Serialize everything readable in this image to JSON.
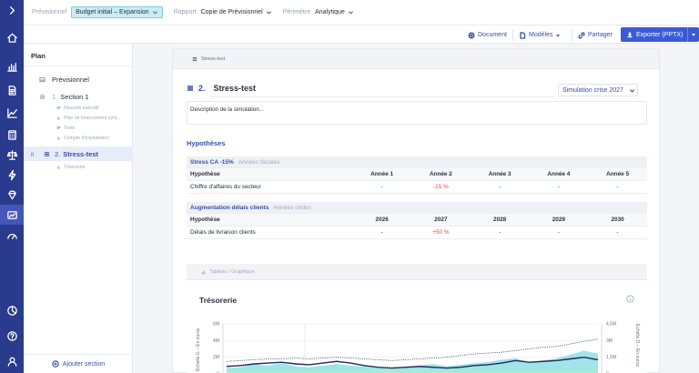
{
  "topbar": {
    "provisionnel_label": "Prévisionnel",
    "provisionnel_value": "Budget initial – Expansion",
    "rapport_label": "Rapport",
    "rapport_value": "Copie de Prévisionnel",
    "perimetre_label": "Périmètre",
    "perimetre_value": "Analytique"
  },
  "actions": {
    "document": "Document",
    "modeles": "Modèles",
    "partager": "Partager",
    "exporter": "Exporter (PPTX)"
  },
  "plan": {
    "title": "Plan",
    "provisionnel": "Prévisionnel",
    "section1_num": "1.",
    "section1_label": "Section 1",
    "section1_items": [
      "Résumé exécutif",
      "Plan de financement synt...",
      "Texte",
      "Compte d'exploitation"
    ],
    "section2_num": "2.",
    "section2_label": "Stress-test",
    "section2_items": [
      "Trésorerie"
    ],
    "add_section": "Ajouter section"
  },
  "content": {
    "crumb": "Stress-test",
    "section_number": "2.",
    "section_title": "Stress-test",
    "scenario": "Simulation crise 2027",
    "description": "Description de la simulation...",
    "hypotheses_title": "Hypothèses",
    "table1": {
      "group_name": "Stress CA -15%",
      "group_sub": "Années fiscales",
      "headers": [
        "Hypothèse",
        "Année 1",
        "Année 2",
        "Année 3",
        "Année 4",
        "Année 5"
      ],
      "row": [
        "Chiffre d'affaires du secteur",
        "-",
        "-15 %",
        "-",
        "-",
        "-"
      ]
    },
    "table2": {
      "group_name": "Augmentation délais clients",
      "group_sub": "Années civiles",
      "headers": [
        "Hypothèse",
        "2026",
        "2027",
        "2028",
        "2029",
        "2030"
      ],
      "row": [
        "Délais de livraison clients",
        "-",
        "+50 %",
        "-",
        "-",
        "-"
      ]
    },
    "chart_strip": "Tableau / Graphique",
    "chart_title": "Trésorerie"
  },
  "chart_data": {
    "type": "line",
    "title": "Trésorerie",
    "left_axis_label": "Échelle G – En euros",
    "right_axis_label": "Échelle D – En euros",
    "left_ticks": [
      "6M",
      "4M",
      "2M",
      "0"
    ],
    "right_ticks": [
      "4,5M",
      "3M",
      "1,5M",
      "0"
    ],
    "ylim_left": [
      0,
      6000000
    ],
    "ylim_right": [
      0,
      4500000
    ],
    "series": [
      {
        "role": "main-line",
        "values": [
          0.9,
          1.0,
          1.2,
          1.3,
          1.4,
          1.2,
          1.1,
          1.3,
          1.5,
          1.3,
          1.0,
          0.8,
          0.7,
          0.8,
          0.9,
          0.8,
          0.7,
          0.8,
          1.0,
          1.1,
          1.3,
          1.6,
          1.4,
          1.5,
          1.6,
          1.8,
          2.0,
          1.7
        ]
      },
      {
        "role": "dotted-line",
        "values": [
          1.5,
          1.6,
          1.7,
          1.8,
          1.8,
          1.9,
          1.8,
          1.9,
          2.0,
          1.9,
          1.8,
          1.7,
          1.6,
          1.7,
          1.8,
          1.9,
          2.0,
          2.2,
          2.4,
          2.5,
          2.6,
          2.8,
          3.0,
          3.2,
          3.3,
          3.6,
          3.9,
          4.2
        ]
      },
      {
        "role": "area",
        "values": [
          0.7,
          0.8,
          1.2,
          1.0,
          1.3,
          0.9,
          0.8,
          1.0,
          1.2,
          1.0,
          0.9,
          0.7,
          0.6,
          0.8,
          1.0,
          1.2,
          0.9,
          1.1,
          1.3,
          1.4,
          1.7,
          1.9,
          1.4,
          1.6,
          1.9,
          2.3,
          2.8,
          2.4
        ]
      }
    ]
  },
  "colors": {
    "rail": "#2a3a8c",
    "accent": "#3b4da8",
    "export_button": "#3b5bd6",
    "area": "#7fdbe0",
    "main_line": "#1d2b5c",
    "negative": "#e04a4a"
  }
}
